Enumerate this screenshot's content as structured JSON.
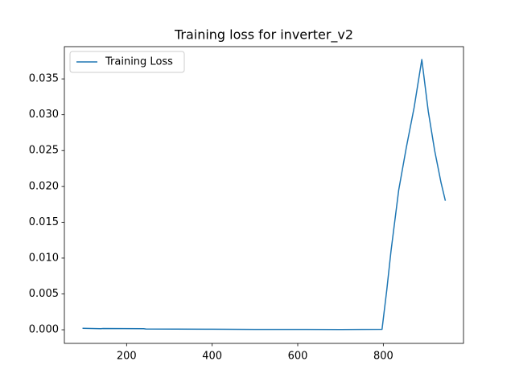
{
  "chart_data": {
    "type": "line",
    "title": "Training loss for inverter_v2",
    "x": [
      97,
      140,
      145,
      240,
      245,
      400,
      500,
      600,
      700,
      797,
      808,
      818,
      836,
      854,
      872,
      890,
      905,
      920,
      935,
      945
    ],
    "series": [
      {
        "name": "Training Loss",
        "color": "#1f77b4",
        "values": [
          0.0002,
          0.00015,
          0.00018,
          0.00015,
          0.0001,
          8e-05,
          5e-05,
          5e-05,
          4e-05,
          6e-05,
          0.0055,
          0.011,
          0.0195,
          0.0255,
          0.031,
          0.0377,
          0.0305,
          0.025,
          0.0205,
          0.018
        ]
      }
    ],
    "xlim": [
      54.6,
      987.4
    ],
    "xticks": [
      200,
      400,
      600,
      800
    ],
    "ylim": [
      -0.0019,
      0.0395
    ],
    "yticks": [
      {
        "value": 0,
        "label": "0.000"
      },
      {
        "value": 0.005,
        "label": "0.005"
      },
      {
        "value": 0.01,
        "label": "0.010"
      },
      {
        "value": 0.015,
        "label": "0.015"
      },
      {
        "value": 0.02,
        "label": "0.020"
      },
      {
        "value": 0.025,
        "label": "0.025"
      },
      {
        "value": 0.03,
        "label": "0.030"
      },
      {
        "value": 0.035,
        "label": "0.035"
      }
    ],
    "legend": "upper left",
    "grid": false
  }
}
